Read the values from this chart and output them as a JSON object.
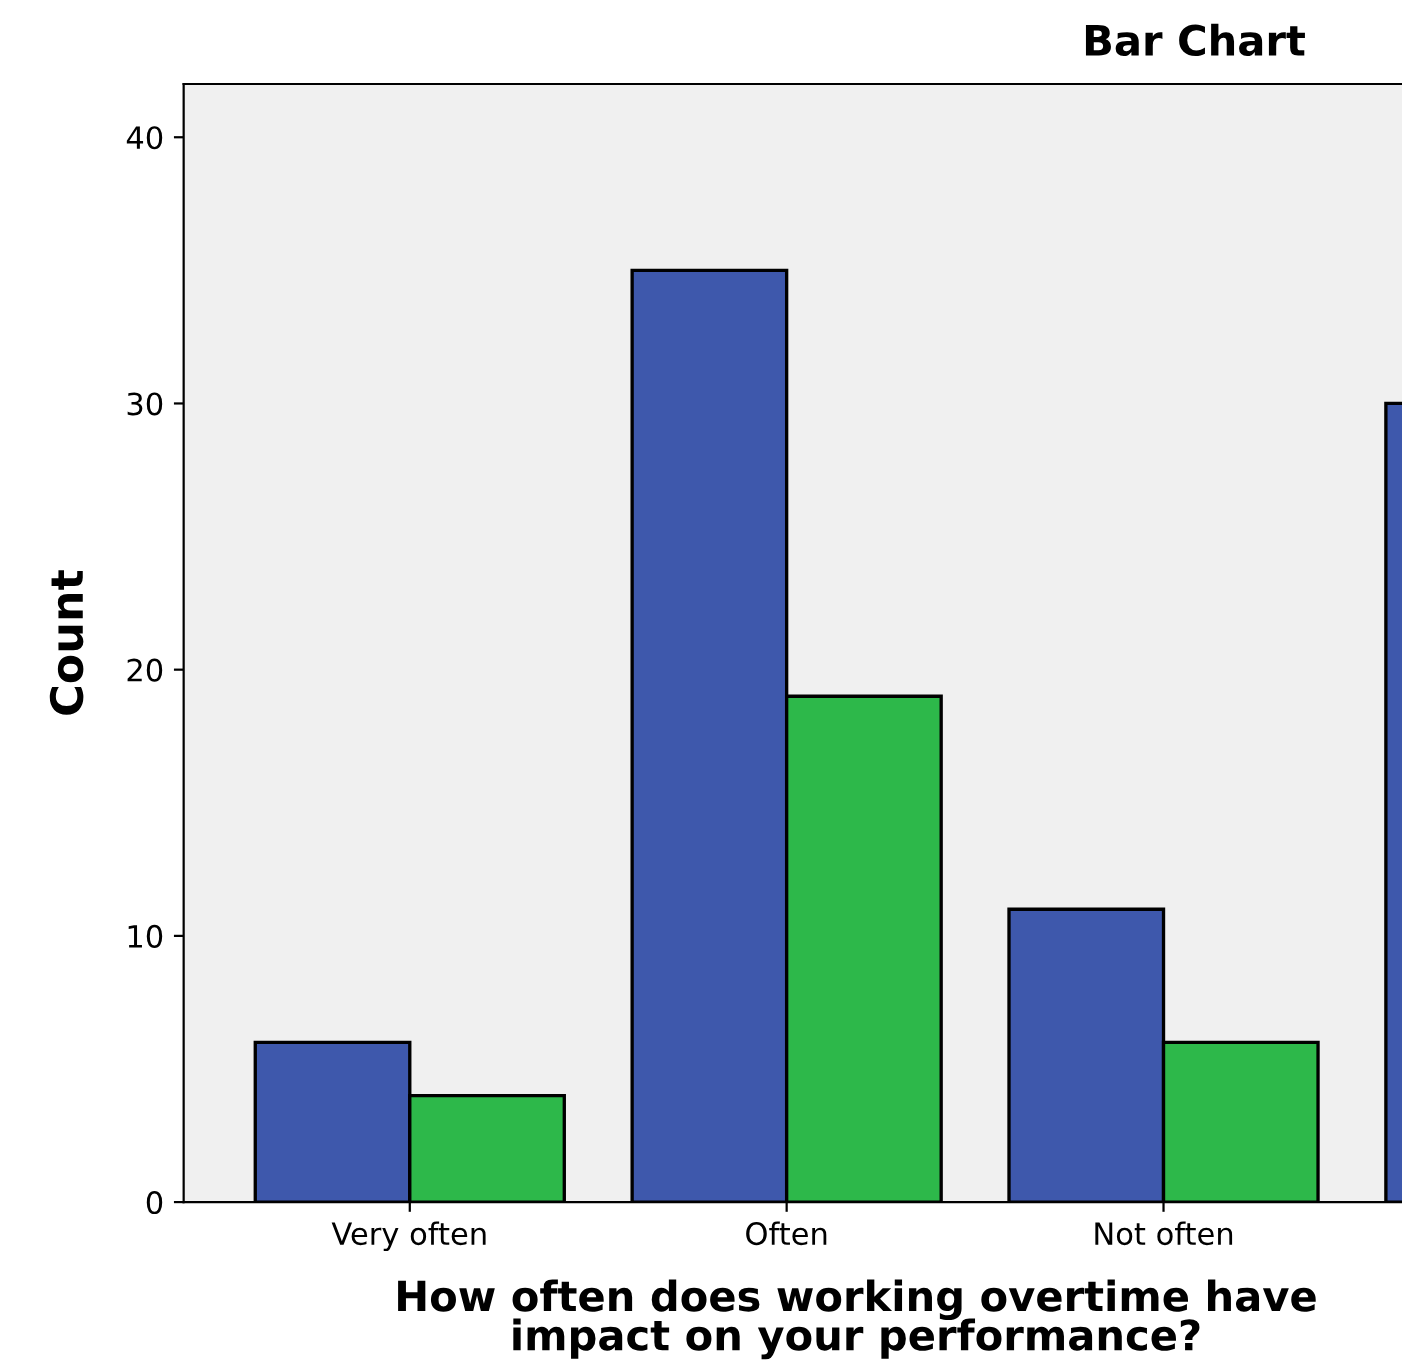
{
  "chart_data": {
    "type": "bar",
    "title": "Bar Chart",
    "xlabel": "How often does working overtime have\nimpact on your performance?",
    "ylabel": "Count",
    "categories": [
      "Very often",
      "Often",
      "Not often",
      null
    ],
    "series": [
      {
        "color": "#3e58ac",
        "values": [
          6,
          35,
          11,
          30
        ]
      },
      {
        "color": "#2db84a",
        "values": [
          4,
          19,
          6,
          null
        ]
      }
    ],
    "ylim": [
      0,
      42
    ],
    "yticks": [
      0,
      10,
      20,
      30,
      40
    ],
    "grid": false,
    "legend": false
  }
}
